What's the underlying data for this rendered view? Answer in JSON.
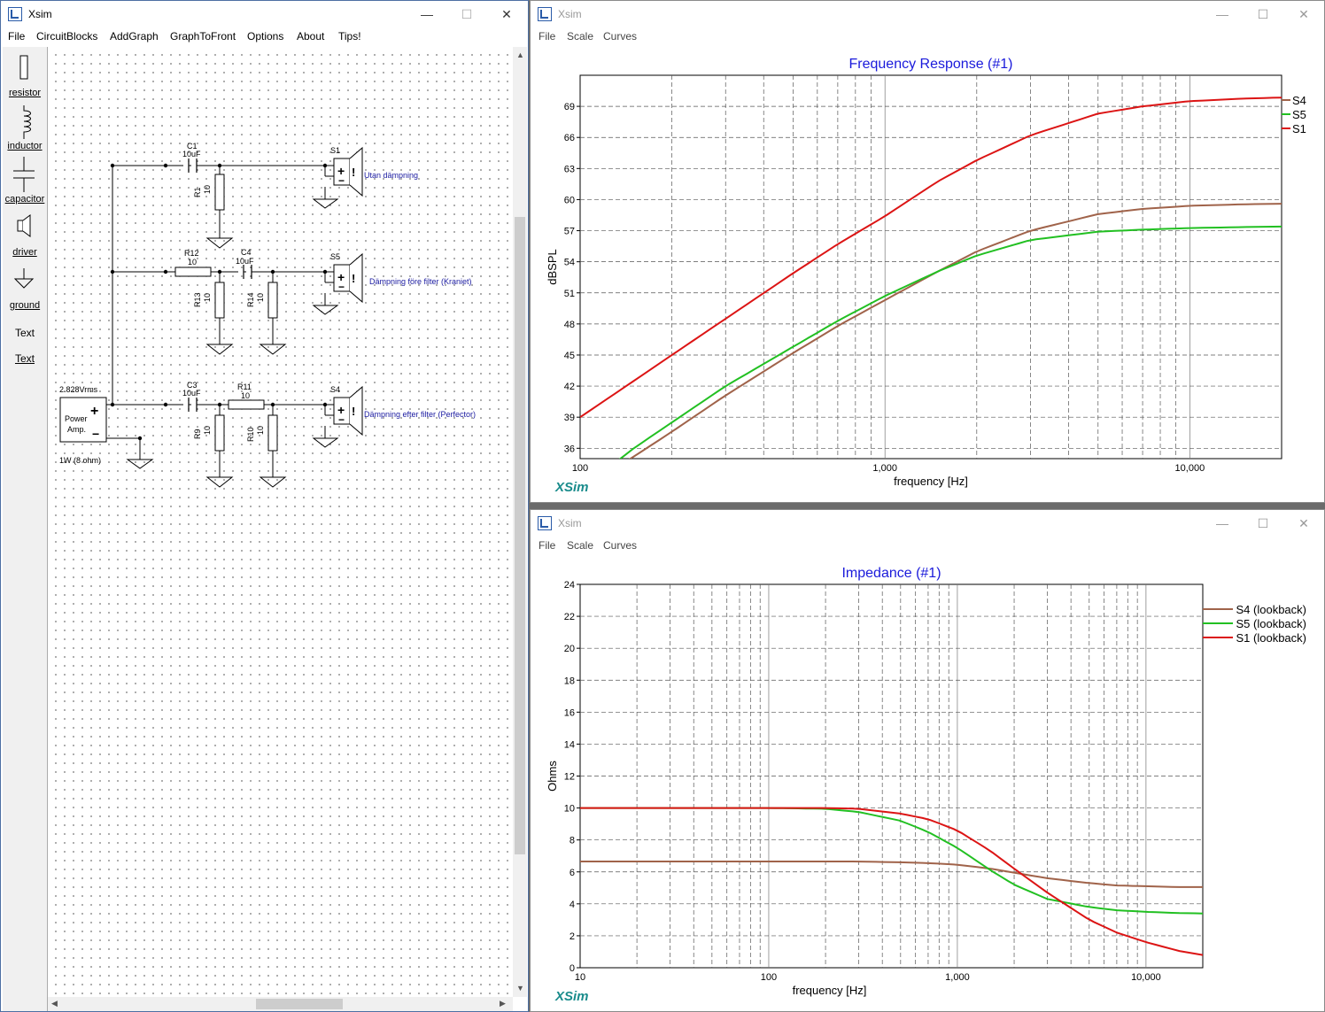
{
  "main_window": {
    "title": "Xsim",
    "controls": {
      "minimize": "—",
      "maximize": "☐",
      "close": "✕"
    },
    "menu": [
      "File",
      "CircuitBlocks",
      "AddGraph",
      "GraphToFront",
      "Options",
      "About",
      "Tips!"
    ],
    "toolbox": [
      "resistor",
      "inductor",
      "capacitor",
      "driver",
      "ground",
      "Text",
      "Text"
    ]
  },
  "schematic": {
    "components": {
      "C1": {
        "name": "C1",
        "value": "10uF"
      },
      "R1": {
        "name": "R1",
        "value": "10"
      },
      "S1": {
        "name": "S1",
        "label": "Utan dämpning"
      },
      "R12": {
        "name": "R12",
        "value": "10"
      },
      "C4": {
        "name": "C4",
        "value": "10uF"
      },
      "R13": {
        "name": "R13",
        "value": "10"
      },
      "R14": {
        "name": "R14",
        "value": "10"
      },
      "S5": {
        "name": "S5",
        "label": "Dämpning före filter (Kraniet)"
      },
      "C3": {
        "name": "C3",
        "value": "10uF"
      },
      "R11": {
        "name": "R11",
        "value": "10"
      },
      "R9": {
        "name": "R9",
        "value": "10"
      },
      "R10": {
        "name": "R10",
        "value": "10"
      },
      "S4": {
        "name": "S4",
        "label": "Dämpning efter filter (Perfector)"
      }
    },
    "amp": {
      "voltage": "2.828Vrms",
      "line1": "Power",
      "line2": "Amp.",
      "rating": "1W (8 ohm)"
    }
  },
  "graph_windows": {
    "frequency": {
      "title": "Xsim",
      "menu": [
        "File",
        "Scale",
        "Curves"
      ],
      "watermark": "XSim"
    },
    "impedance": {
      "title": "Xsim",
      "menu": [
        "File",
        "Scale",
        "Curves"
      ],
      "watermark": "XSim"
    }
  },
  "chart_data": [
    {
      "type": "line",
      "title": "Frequency Response (#1)",
      "xlabel": "frequency [Hz]",
      "ylabel": "dBSPL",
      "xscale": "log",
      "xlim": [
        100,
        20000
      ],
      "ylim": [
        35,
        72
      ],
      "xticks": [
        100,
        1000,
        10000
      ],
      "xtick_labels": [
        "100",
        "1,000",
        "10,000"
      ],
      "yticks": [
        36,
        39,
        42,
        45,
        48,
        51,
        54,
        57,
        60,
        63,
        66,
        69
      ],
      "grid": true,
      "legend_position": "right",
      "series": [
        {
          "name": "S4",
          "color": "#a0634a",
          "x": [
            100,
            150,
            200,
            300,
            500,
            700,
            1000,
            1500,
            2000,
            3000,
            5000,
            7000,
            10000,
            15000,
            20000
          ],
          "y": [
            32,
            35.2,
            37.6,
            41.1,
            45.2,
            47.8,
            50.3,
            53.1,
            55.0,
            57.0,
            58.6,
            59.1,
            59.4,
            59.55,
            59.6
          ]
        },
        {
          "name": "S5",
          "color": "#22c022",
          "x": [
            100,
            150,
            200,
            300,
            500,
            700,
            1000,
            1500,
            2000,
            3000,
            5000,
            7000,
            10000,
            15000,
            20000
          ],
          "y": [
            32,
            36.0,
            38.5,
            42.0,
            45.8,
            48.3,
            50.7,
            53.1,
            54.6,
            56.1,
            56.9,
            57.1,
            57.25,
            57.35,
            57.4
          ]
        },
        {
          "name": "S1",
          "color": "#dc1414",
          "x": [
            100,
            150,
            200,
            300,
            500,
            700,
            1000,
            1500,
            2000,
            3000,
            5000,
            7000,
            10000,
            15000,
            20000
          ],
          "y": [
            39.0,
            42.5,
            45.0,
            48.5,
            52.9,
            55.7,
            58.4,
            61.8,
            63.8,
            66.2,
            68.3,
            69.0,
            69.5,
            69.75,
            69.85
          ]
        }
      ]
    },
    {
      "type": "line",
      "title": "Impedance (#1)",
      "xlabel": "frequency [Hz]",
      "ylabel": "Ohms",
      "xscale": "log",
      "xlim": [
        10,
        20000
      ],
      "ylim": [
        0,
        24
      ],
      "xticks": [
        10,
        100,
        1000,
        10000
      ],
      "xtick_labels": [
        "10",
        "100",
        "1,000",
        "10,000"
      ],
      "yticks": [
        0,
        2,
        4,
        6,
        8,
        10,
        12,
        14,
        16,
        18,
        20,
        22,
        24
      ],
      "grid": true,
      "legend_position": "right",
      "series": [
        {
          "name": "S4 (lookback)",
          "color": "#a0634a",
          "x": [
            10,
            100,
            300,
            500,
            700,
            1000,
            1500,
            2000,
            3000,
            5000,
            7000,
            10000,
            15000,
            20000
          ],
          "y": [
            6.65,
            6.65,
            6.65,
            6.6,
            6.55,
            6.45,
            6.2,
            5.95,
            5.6,
            5.3,
            5.15,
            5.1,
            5.05,
            5.05
          ]
        },
        {
          "name": "S5 (lookback)",
          "color": "#22c022",
          "x": [
            10,
            100,
            200,
            300,
            500,
            700,
            1000,
            1500,
            2000,
            3000,
            5000,
            7000,
            10000,
            15000,
            20000
          ],
          "y": [
            10.0,
            10.0,
            9.95,
            9.75,
            9.2,
            8.5,
            7.5,
            6.1,
            5.2,
            4.3,
            3.8,
            3.6,
            3.5,
            3.42,
            3.4
          ]
        },
        {
          "name": "S1 (lookback)",
          "color": "#dc1414",
          "x": [
            10,
            100,
            200,
            300,
            500,
            700,
            1000,
            1500,
            2000,
            3000,
            5000,
            7000,
            10000,
            15000,
            20000
          ],
          "y": [
            10.0,
            10.0,
            10.0,
            9.95,
            9.65,
            9.3,
            8.6,
            7.3,
            6.2,
            4.7,
            3.0,
            2.2,
            1.6,
            1.05,
            0.8
          ]
        }
      ]
    }
  ]
}
